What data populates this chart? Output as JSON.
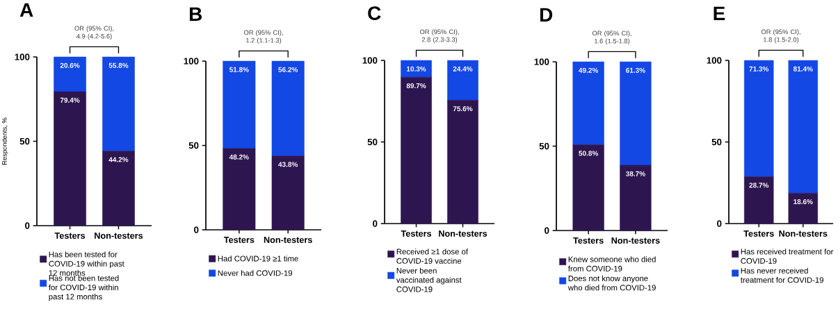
{
  "chart_data": [
    {
      "type": "bar",
      "stacked": true,
      "title": "A",
      "ylabel": "Respondents, %",
      "categories": [
        "Testers",
        "Non-testers"
      ],
      "ylim": [
        0,
        100
      ],
      "yticks": [
        0,
        50,
        100
      ],
      "legend": "bottom",
      "annotations": [
        "OR (95% CI), 4.9 (4.2-5.6)"
      ],
      "series": [
        {
          "name": "Has been tested for COVID-19 within past 12 months",
          "color": "#2d1650",
          "values": [
            79.4,
            44.2
          ],
          "value_labels": [
            "79.4%",
            "44.2%"
          ]
        },
        {
          "name": "Has not been tested for COVID-19 within past 12 months",
          "color": "#1448e4",
          "values": [
            20.6,
            55.8
          ],
          "value_labels": [
            "20.6%",
            "55.8%"
          ]
        }
      ]
    },
    {
      "type": "bar",
      "stacked": true,
      "title": "B",
      "categories": [
        "Testers",
        "Non-testers"
      ],
      "ylim": [
        0,
        100
      ],
      "yticks": [
        0,
        50,
        100
      ],
      "legend": "bottom",
      "annotations": [
        "OR (95% CI), 1.2 (1.1-1.3)"
      ],
      "series": [
        {
          "name": "Had COVID-19 ≥1 time",
          "color": "#2d1650",
          "values": [
            48.2,
            43.8
          ],
          "value_labels": [
            "48.2%",
            "43.8%"
          ]
        },
        {
          "name": "Never had COVID-19",
          "color": "#1448e4",
          "values": [
            51.8,
            56.2
          ],
          "value_labels": [
            "51.8%",
            "56.2%"
          ]
        }
      ]
    },
    {
      "type": "bar",
      "stacked": true,
      "title": "C",
      "categories": [
        "Testers",
        "Non-testers"
      ],
      "ylim": [
        0,
        100
      ],
      "yticks": [
        0,
        50,
        100
      ],
      "legend": "bottom",
      "annotations": [
        "OR (95% CI), 2.8 (2.3-3.3)"
      ],
      "series": [
        {
          "name": "Received ≥1 dose of COVID-19 vaccine",
          "color": "#2d1650",
          "values": [
            89.7,
            75.6
          ],
          "value_labels": [
            "89.7%",
            "75.6%"
          ]
        },
        {
          "name": "Never been vaccinated against COVID-19",
          "color": "#1448e4",
          "values": [
            10.3,
            24.4
          ],
          "value_labels": [
            "10.3%",
            "24.4%"
          ]
        }
      ]
    },
    {
      "type": "bar",
      "stacked": true,
      "title": "D",
      "categories": [
        "Testers",
        "Non-testers"
      ],
      "ylim": [
        0,
        100
      ],
      "yticks": [
        0,
        50,
        100
      ],
      "legend": "bottom",
      "annotations": [
        "OR (95% CI), 1.6 (1.5-1.8)"
      ],
      "series": [
        {
          "name": "Knew someone who died from COVID-19",
          "color": "#2d1650",
          "values": [
            50.8,
            38.7
          ],
          "value_labels": [
            "50.8%",
            "38.7%"
          ]
        },
        {
          "name": "Does not know anyone who died from COVID-19",
          "color": "#1448e4",
          "values": [
            49.2,
            61.3
          ],
          "value_labels": [
            "49.2%",
            "61.3%"
          ]
        }
      ]
    },
    {
      "type": "bar",
      "stacked": true,
      "title": "E",
      "categories": [
        "Testers",
        "Non-testers"
      ],
      "ylim": [
        0,
        100
      ],
      "yticks": [
        0,
        50,
        100
      ],
      "legend": "bottom",
      "annotations": [
        "OR (95% CI), 1.8 (1.5-2.0)"
      ],
      "series": [
        {
          "name": "Has received treatment for COVID-19",
          "color": "#2d1650",
          "values": [
            28.7,
            18.6
          ],
          "value_labels": [
            "28.7%",
            "18.6%"
          ]
        },
        {
          "name": "Has never received treatment for COVID-19",
          "color": "#1448e4",
          "values": [
            71.3,
            81.4
          ],
          "value_labels": [
            "71.3%",
            "81.4%"
          ]
        }
      ]
    }
  ]
}
